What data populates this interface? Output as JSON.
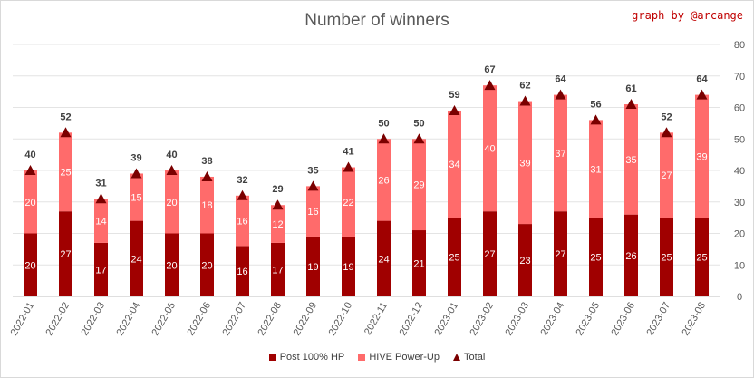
{
  "chart_data": {
    "type": "bar",
    "title": "Number of winners",
    "credit": "graph by @arcange",
    "categories": [
      "2022-01",
      "2022-02",
      "2022-03",
      "2022-04",
      "2022-05",
      "2022-06",
      "2022-07",
      "2022-08",
      "2022-09",
      "2022-10",
      "2022-11",
      "2022-12",
      "2023-01",
      "2023-02",
      "2023-03",
      "2023-04",
      "2023-05",
      "2023-06",
      "2023-07",
      "2023-08"
    ],
    "series": [
      {
        "name": "Post 100% HP",
        "color": "#a00000",
        "values": [
          20,
          27,
          17,
          24,
          20,
          20,
          16,
          17,
          19,
          19,
          24,
          21,
          25,
          27,
          23,
          27,
          25,
          26,
          25,
          25
        ]
      },
      {
        "name": "HIVE Power-Up",
        "color": "#ff6b6b",
        "values": [
          20,
          25,
          14,
          15,
          20,
          18,
          16,
          12,
          16,
          22,
          26,
          29,
          34,
          40,
          39,
          37,
          31,
          35,
          27,
          39
        ]
      },
      {
        "name": "Total",
        "marker": "triangle",
        "color": "#7b0000",
        "values": [
          40,
          52,
          31,
          39,
          40,
          38,
          32,
          29,
          35,
          41,
          50,
          50,
          59,
          67,
          62,
          64,
          56,
          61,
          52,
          64
        ]
      }
    ],
    "ylim": [
      0,
      80
    ],
    "yticks": [
      "0",
      "10",
      "20",
      "30",
      "40",
      "50",
      "60",
      "70",
      "80"
    ],
    "y_axis_side": "right",
    "grid": true,
    "legend_position": "bottom"
  }
}
